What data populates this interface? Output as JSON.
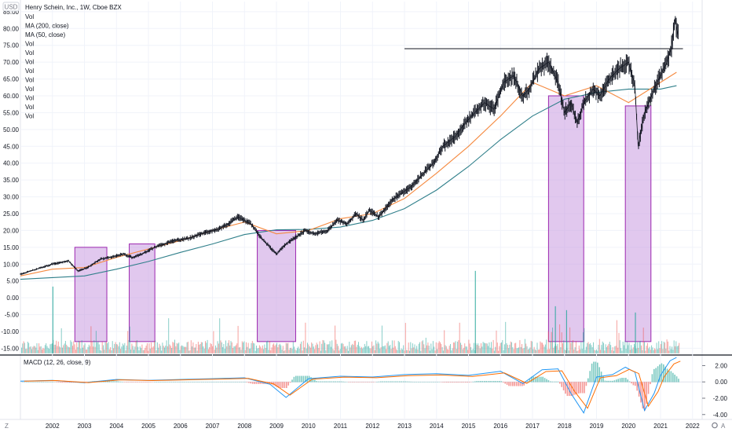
{
  "chart_data": {
    "type": "line",
    "title": "Henry Schein, Inc., 1W, Cboe BZX",
    "currency": "USD",
    "legend_entries": [
      "Vol",
      "MA (200, close)",
      "MA (50, close)",
      "Vol",
      "Vol",
      "Vol",
      "Vol",
      "Vol",
      "Vol",
      "Vol",
      "Vol",
      "Vol"
    ],
    "price_axis_ticks": [
      "85.00",
      "80.00",
      "75.00",
      "70.00",
      "65.00",
      "60.00",
      "55.00",
      "50.00",
      "45.00",
      "40.00",
      "35.00",
      "30.00",
      "25.00",
      "20.00",
      "15.00",
      "10.00",
      "5.00",
      "0.00",
      "-5.00",
      "-10.00",
      "-15.00"
    ],
    "time_axis_ticks": [
      "2002",
      "2003",
      "2004",
      "2005",
      "2006",
      "2007",
      "2008",
      "2009",
      "2010",
      "2011",
      "2012",
      "2013",
      "2014",
      "2015",
      "2016",
      "2017",
      "2018",
      "2019",
      "2020",
      "2021",
      "2022"
    ],
    "ylim": [
      -17,
      88
    ],
    "xlim": [
      2001.0,
      2022.3
    ],
    "colors": {
      "price": "#131722",
      "ma200": "#2f7f8a",
      "ma50": "#f5893f",
      "vol_up": "#26a69a",
      "vol_down": "#ef5350",
      "highlight_fill": "#c99be0",
      "highlight_stroke": "#9c27b0",
      "macd_line": "#2196f3",
      "signal_line": "#ff6d00"
    },
    "price_series": {
      "name": "Henry Schein, Inc.",
      "x": [
        2001.0,
        2001.5,
        2002.0,
        2002.5,
        2002.8,
        2003.1,
        2003.5,
        2003.8,
        2004.2,
        2004.5,
        2004.8,
        2005.2,
        2005.5,
        2005.8,
        2006.2,
        2006.5,
        2006.8,
        2007.2,
        2007.5,
        2007.8,
        2008.2,
        2008.5,
        2008.8,
        2009.0,
        2009.3,
        2009.6,
        2009.9,
        2010.2,
        2010.6,
        2010.9,
        2011.2,
        2011.5,
        2011.7,
        2011.9,
        2012.2,
        2012.6,
        2012.9,
        2013.2,
        2013.6,
        2013.9,
        2014.2,
        2014.6,
        2014.9,
        2015.2,
        2015.5,
        2015.8,
        2016.1,
        2016.4,
        2016.7,
        2016.9,
        2017.2,
        2017.5,
        2017.8,
        2018.0,
        2018.2,
        2018.4,
        2018.6,
        2018.9,
        2019.1,
        2019.4,
        2019.7,
        2020.0,
        2020.2,
        2020.3,
        2020.5,
        2020.8,
        2021.0,
        2021.2,
        2021.35,
        2021.45,
        2021.55
      ],
      "y": [
        7,
        8.5,
        10,
        11,
        8,
        9,
        11.5,
        12,
        13,
        12,
        13,
        15,
        16,
        17,
        17.5,
        18.5,
        19.5,
        20.5,
        22,
        24,
        22,
        18,
        15,
        13,
        16,
        18,
        20,
        19,
        20,
        23,
        22,
        25,
        23,
        26,
        24,
        29,
        31,
        33,
        37,
        40,
        45,
        48,
        52,
        55,
        58,
        56,
        64,
        66,
        60,
        62,
        68,
        70,
        64,
        55,
        58,
        52,
        58,
        62,
        60,
        65,
        68,
        70,
        63,
        45,
        55,
        62,
        66,
        70,
        75,
        83,
        78
      ]
    },
    "ma200_series": {
      "name": "MA (200, close)",
      "x": [
        2001.0,
        2002.0,
        2003.0,
        2004.0,
        2005.0,
        2006.0,
        2007.0,
        2008.0,
        2009.0,
        2010.0,
        2011.0,
        2012.0,
        2013.0,
        2014.0,
        2015.0,
        2016.0,
        2017.0,
        2018.0,
        2019.0,
        2020.0,
        2021.0,
        2021.5
      ],
      "y": [
        5.5,
        6.0,
        6.5,
        8.5,
        10.8,
        13.5,
        16,
        18.8,
        20.2,
        20.3,
        21,
        23,
        26.5,
        32,
        39,
        47,
        54,
        59,
        61,
        62,
        62,
        63
      ]
    },
    "ma50_series": {
      "name": "MA (50, close)",
      "x": [
        2001.0,
        2002.0,
        2003.0,
        2004.0,
        2005.0,
        2006.0,
        2007.0,
        2008.0,
        2009.0,
        2010.0,
        2011.0,
        2012.0,
        2013.0,
        2014.0,
        2015.0,
        2016.0,
        2017.0,
        2018.0,
        2019.0,
        2020.0,
        2021.0,
        2021.5
      ],
      "y": [
        6.5,
        8.5,
        9,
        12,
        14.5,
        17,
        20,
        22.5,
        19,
        20,
        23.5,
        25,
        29.5,
        37,
        45,
        54,
        64,
        60,
        63,
        58,
        64,
        67
      ]
    },
    "resistance_line": {
      "x": [
        2013.0,
        2021.7
      ],
      "y": [
        74,
        74
      ]
    },
    "highlight_regions": [
      {
        "x": [
          2002.7,
          2003.7
        ],
        "y": [
          -13,
          15
        ]
      },
      {
        "x": [
          2004.4,
          2005.2
        ],
        "y": [
          -13,
          16
        ]
      },
      {
        "x": [
          2008.4,
          2009.6
        ],
        "y": [
          -13,
          20
        ]
      },
      {
        "x": [
          2017.5,
          2018.6
        ],
        "y": [
          -13,
          60
        ]
      },
      {
        "x": [
          2019.9,
          2020.7
        ],
        "y": [
          -13,
          57
        ]
      }
    ],
    "macd": {
      "label": "MACD (12, 26, close, 9)",
      "ticks": [
        "2.00",
        "0.00",
        "-2.00",
        "-4.00"
      ],
      "ylim": [
        -4.6,
        3.2
      ],
      "x": [
        2001.0,
        2002.0,
        2003.0,
        2004.0,
        2005.0,
        2006.0,
        2007.0,
        2008.0,
        2008.8,
        2009.3,
        2010.0,
        2011.0,
        2012.0,
        2013.0,
        2014.0,
        2015.0,
        2016.0,
        2016.7,
        2017.3,
        2017.8,
        2018.2,
        2018.6,
        2019.0,
        2019.5,
        2019.9,
        2020.2,
        2020.5,
        2020.8,
        2021.0,
        2021.3,
        2021.5
      ],
      "values": [
        0.1,
        0.2,
        -0.1,
        0.3,
        0.2,
        0.3,
        0.4,
        0.5,
        -0.3,
        -1.9,
        0.4,
        0.7,
        0.6,
        0.9,
        1.0,
        0.8,
        1.3,
        -0.2,
        1.5,
        1.6,
        -1.4,
        -3.8,
        0.6,
        0.9,
        1.8,
        1.2,
        -3.5,
        -1.4,
        0.8,
        2.6,
        3.0
      ]
    }
  }
}
